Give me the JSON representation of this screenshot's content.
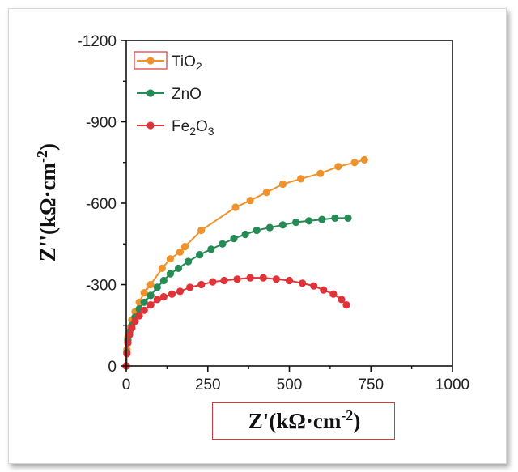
{
  "chart_data": {
    "type": "line",
    "title": "",
    "xlabel": {
      "base": "Z'(kΩ·cm",
      "sup": "-2",
      "close": ")"
    },
    "ylabel": {
      "base": "Z''(kΩ·cm",
      "sup": "-2",
      "close": ")"
    },
    "xlim": [
      0,
      1000
    ],
    "ylim": [
      0,
      -1200
    ],
    "xticks": [
      "0",
      "250",
      "500",
      "750",
      "1000"
    ],
    "yticks": [
      "0",
      "-300",
      "-600",
      "-900",
      "-1200"
    ],
    "grid": false,
    "legend_position": "top-left",
    "series": [
      {
        "name": "TiO2",
        "label_parts": [
          [
            "Ti",
            false
          ],
          [
            "O",
            false
          ],
          [
            "2",
            true
          ]
        ],
        "color": "#f0922b",
        "x": [
          0,
          2,
          5,
          10,
          17,
          27,
          40,
          55,
          75,
          110,
          135,
          165,
          180,
          230,
          335,
          380,
          430,
          480,
          535,
          595,
          650,
          700,
          730
        ],
        "y": [
          0,
          -60,
          -105,
          -140,
          -170,
          -200,
          -235,
          -270,
          -300,
          -360,
          -395,
          -420,
          -440,
          -500,
          -585,
          -610,
          -640,
          -670,
          -690,
          -710,
          -735,
          -750,
          -760
        ]
      },
      {
        "name": "ZnO",
        "label_parts": [
          [
            "ZnO",
            false
          ]
        ],
        "color": "#258a54",
        "x": [
          0,
          2,
          5,
          10,
          17,
          27,
          40,
          55,
          75,
          95,
          115,
          135,
          160,
          190,
          225,
          260,
          295,
          330,
          365,
          400,
          440,
          480,
          520,
          560,
          600,
          640,
          680
        ],
        "y": [
          0,
          -50,
          -95,
          -125,
          -150,
          -180,
          -210,
          -235,
          -260,
          -290,
          -315,
          -340,
          -360,
          -385,
          -410,
          -430,
          -450,
          -470,
          -485,
          -500,
          -510,
          -520,
          -530,
          -535,
          -540,
          -545,
          -545
        ]
      },
      {
        "name": "Fe2O3",
        "label_parts": [
          [
            "Fe",
            false
          ],
          [
            "2",
            true
          ],
          [
            "O",
            false
          ],
          [
            "3",
            true
          ]
        ],
        "color": "#e03339",
        "x": [
          0,
          2,
          5,
          10,
          17,
          27,
          40,
          55,
          75,
          95,
          115,
          140,
          165,
          195,
          230,
          265,
          300,
          340,
          380,
          420,
          460,
          500,
          540,
          575,
          605,
          635,
          660,
          675
        ],
        "y": [
          0,
          -45,
          -85,
          -115,
          -140,
          -165,
          -185,
          -205,
          -225,
          -245,
          -255,
          -265,
          -275,
          -290,
          -300,
          -310,
          -315,
          -320,
          -325,
          -325,
          -320,
          -315,
          -305,
          -295,
          -280,
          -265,
          -245,
          -225
        ]
      }
    ]
  }
}
